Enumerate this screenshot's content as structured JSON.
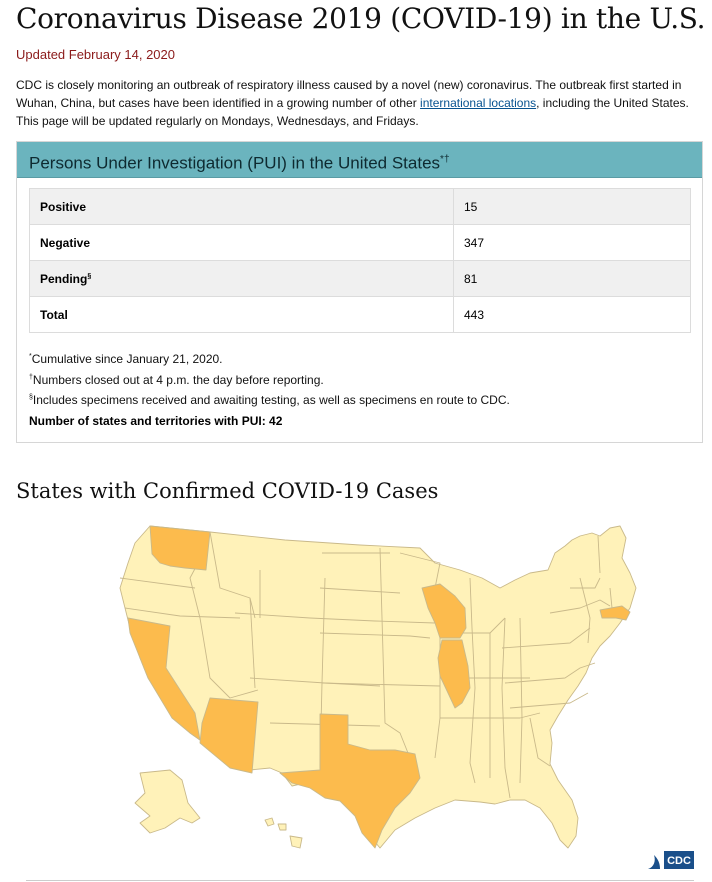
{
  "page": {
    "title": "Coronavirus Disease 2019 (COVID-19) in the U.S.",
    "updated": "Updated February 14, 2020",
    "intro_before_link": "CDC is closely monitoring an outbreak of respiratory illness caused by a novel (new) coronavirus. The outbreak first started in Wuhan, China, but cases have been identified in a growing number of other ",
    "intro_link": "international locations",
    "intro_after_link": ", including the United States. This page will be updated regularly on Mondays, Wednesdays, and Fridays."
  },
  "pui_card": {
    "heading": "Persons Under Investigation (PUI) in the United States",
    "heading_marks": "*†",
    "rows": [
      {
        "label": "Positive",
        "mark": "",
        "value": "15"
      },
      {
        "label": "Negative",
        "mark": "",
        "value": "347"
      },
      {
        "label": "Pending",
        "mark": "§",
        "value": "81"
      },
      {
        "label": "Total",
        "mark": "",
        "value": "443"
      }
    ],
    "notes": [
      {
        "mark": "*",
        "text": "Cumulative since January 21, 2020."
      },
      {
        "mark": "†",
        "text": "Numbers closed out at 4 p.m. the day before reporting."
      },
      {
        "mark": "§",
        "text": "Includes specimens received and awaiting testing, as well as specimens en route to CDC."
      }
    ],
    "state_count": "Number of states and territories with PUI: 42"
  },
  "map_section": {
    "heading": "States with Confirmed COVID-19 Cases",
    "confirmed_states": [
      "Washington",
      "California",
      "Arizona",
      "Texas",
      "Wisconsin",
      "Illinois",
      "Massachusetts"
    ],
    "colors": {
      "confirmed": "#fcbb4d",
      "other": "#fff2b9",
      "border": "#c9b98a"
    },
    "logo_text": "CDC"
  },
  "colors": {
    "card_header": "#6bb4be",
    "updated_text": "#8b1a1a",
    "link": "#075290"
  }
}
